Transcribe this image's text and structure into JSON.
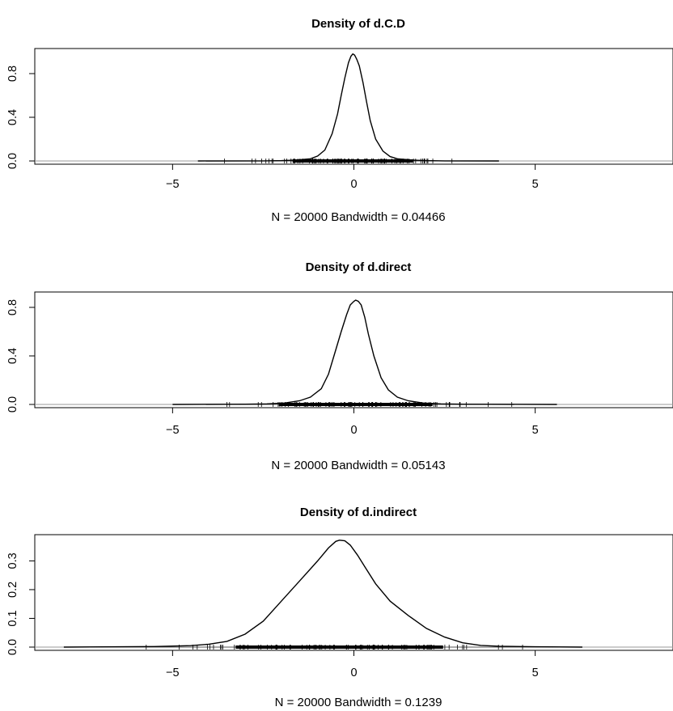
{
  "chart_data": [
    {
      "type": "line",
      "title": "Density of d.C.D",
      "xlabel": "N = 20000   Bandwidth = 0.04466",
      "ylabel": "",
      "xlim": [
        -8.8,
        8.8
      ],
      "ylim": [
        0,
        1.0
      ],
      "x_ticks": [
        -5,
        0,
        5
      ],
      "x_tick_labels": [
        "−5",
        "0",
        "5"
      ],
      "y_ticks": [
        0.0,
        0.4,
        0.8
      ],
      "y_tick_labels": [
        "0.0",
        "0.4",
        "0.8"
      ],
      "grid": false,
      "zero_line": true,
      "rug_range": [
        -4.3,
        4.0
      ],
      "series": [
        {
          "x": [
            -4.3,
            -2.5,
            -2.0,
            -1.6,
            -1.2,
            -1.0,
            -0.8,
            -0.6,
            -0.45,
            -0.35,
            -0.25,
            -0.15,
            -0.08,
            -0.03,
            0.02,
            0.08,
            0.15,
            0.25,
            0.35,
            0.45,
            0.6,
            0.8,
            1.0,
            1.2,
            1.6,
            2.0,
            2.5,
            4.0
          ],
          "y": [
            0.0,
            0.001,
            0.003,
            0.008,
            0.02,
            0.045,
            0.1,
            0.25,
            0.43,
            0.6,
            0.76,
            0.9,
            0.96,
            0.98,
            0.97,
            0.93,
            0.87,
            0.72,
            0.54,
            0.37,
            0.2,
            0.09,
            0.04,
            0.02,
            0.008,
            0.003,
            0.001,
            0.0
          ]
        }
      ]
    },
    {
      "type": "line",
      "title": "Density of d.direct",
      "xlabel": "N = 20000   Bandwidth = 0.05143",
      "ylabel": "",
      "xlim": [
        -8.8,
        8.8
      ],
      "ylim": [
        0,
        0.9
      ],
      "x_ticks": [
        -5,
        0,
        5
      ],
      "x_tick_labels": [
        "−5",
        "0",
        "5"
      ],
      "y_ticks": [
        0.0,
        0.4,
        0.8
      ],
      "y_tick_labels": [
        "0.0",
        "0.4",
        "0.8"
      ],
      "grid": false,
      "zero_line": true,
      "rug_range": [
        -5.0,
        5.6
      ],
      "series": [
        {
          "x": [
            -5.0,
            -3.0,
            -2.4,
            -1.9,
            -1.5,
            -1.2,
            -0.9,
            -0.7,
            -0.5,
            -0.35,
            -0.2,
            -0.1,
            0.0,
            0.05,
            0.12,
            0.2,
            0.3,
            0.4,
            0.55,
            0.75,
            0.95,
            1.2,
            1.5,
            1.9,
            2.4,
            3.0,
            5.6
          ],
          "y": [
            0.0,
            0.002,
            0.005,
            0.012,
            0.03,
            0.06,
            0.13,
            0.25,
            0.45,
            0.6,
            0.74,
            0.82,
            0.85,
            0.86,
            0.85,
            0.82,
            0.72,
            0.58,
            0.4,
            0.22,
            0.12,
            0.06,
            0.03,
            0.012,
            0.005,
            0.002,
            0.0
          ]
        }
      ]
    },
    {
      "type": "line",
      "title": "Density of d.indirect",
      "xlabel": "N = 20000   Bandwidth = 0.1239",
      "ylabel": "",
      "xlim": [
        -8.8,
        8.8
      ],
      "ylim": [
        0,
        0.38
      ],
      "x_ticks": [
        -5,
        0,
        5
      ],
      "x_tick_labels": [
        "−5",
        "0",
        "5"
      ],
      "y_ticks": [
        0.0,
        0.1,
        0.2,
        0.3
      ],
      "y_tick_labels": [
        "0.0",
        "0.1",
        "0.2",
        "0.3"
      ],
      "grid": false,
      "zero_line": true,
      "rug_range": [
        -8.0,
        6.3
      ],
      "series": [
        {
          "x": [
            -8.0,
            -5.5,
            -4.5,
            -4.0,
            -3.5,
            -3.0,
            -2.5,
            -2.0,
            -1.5,
            -1.0,
            -0.7,
            -0.5,
            -0.4,
            -0.25,
            -0.1,
            0.1,
            0.3,
            0.6,
            1.0,
            1.5,
            2.0,
            2.5,
            3.0,
            3.5,
            4.0,
            5.0,
            6.3
          ],
          "y": [
            0.0,
            0.002,
            0.005,
            0.01,
            0.02,
            0.045,
            0.09,
            0.16,
            0.23,
            0.3,
            0.345,
            0.368,
            0.372,
            0.37,
            0.355,
            0.32,
            0.28,
            0.22,
            0.16,
            0.11,
            0.065,
            0.035,
            0.015,
            0.006,
            0.003,
            0.001,
            0.0
          ]
        }
      ]
    }
  ]
}
